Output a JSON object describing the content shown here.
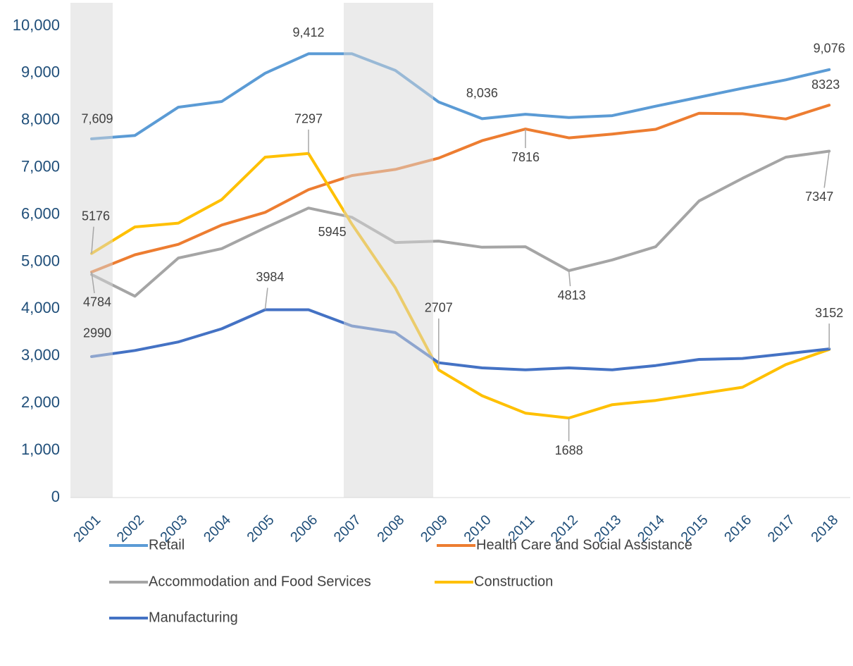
{
  "chart_data": {
    "type": "line",
    "categories": [
      "2001",
      "2002",
      "2003",
      "2004",
      "2005",
      "2006",
      "2007",
      "2008",
      "2009",
      "2010",
      "2011",
      "2012",
      "2013",
      "2014",
      "2015",
      "2016",
      "2017",
      "2018"
    ],
    "ylim": [
      0,
      10000
    ],
    "yticks": [
      0,
      {
        "value": 1000,
        "label": "1,000"
      },
      {
        "value": 2000,
        "label": "2,000"
      },
      {
        "value": 3000,
        "label": "3,000"
      },
      {
        "value": 4000,
        "label": "4,000"
      },
      {
        "value": 5000,
        "label": "5,000"
      },
      {
        "value": 6000,
        "label": "6,000"
      },
      {
        "value": 7000,
        "label": "7,000"
      },
      {
        "value": 8000,
        "label": "8,000"
      },
      {
        "value": 9000,
        "label": "9,000"
      },
      {
        "value": 10000,
        "label": "10,000"
      }
    ],
    "grid": false,
    "series": [
      {
        "name": "Retail",
        "color": "#5b9bd5",
        "values": [
          7609,
          7680,
          8280,
          8400,
          9000,
          9412,
          9412,
          9060,
          8390,
          8036,
          8130,
          8060,
          8100,
          8300,
          8490,
          8680,
          8860,
          9076
        ],
        "value_labels": [
          "7,609",
          null,
          null,
          null,
          null,
          "9,412",
          null,
          null,
          null,
          "8,036",
          null,
          null,
          null,
          null,
          null,
          null,
          null,
          "9,076"
        ]
      },
      {
        "name": "Health Care and Social Assistance",
        "color": "#ed7d31",
        "values": [
          4784,
          5150,
          5370,
          5780,
          6050,
          6530,
          6830,
          6960,
          7200,
          7570,
          7816,
          7630,
          7710,
          7810,
          8150,
          8140,
          8030,
          8323
        ],
        "value_labels": [
          "4784",
          null,
          null,
          null,
          null,
          null,
          null,
          null,
          null,
          null,
          "7816",
          null,
          null,
          null,
          null,
          null,
          null,
          "8323"
        ]
      },
      {
        "name": "Accommodation and Food Services",
        "color": "#a5a5a5",
        "values": [
          4730,
          4270,
          5080,
          5280,
          5720,
          6140,
          5945,
          5410,
          5440,
          5310,
          5320,
          4813,
          5040,
          5320,
          6290,
          6770,
          7220,
          7347
        ],
        "value_labels": [
          null,
          null,
          null,
          null,
          null,
          null,
          "5945",
          null,
          null,
          null,
          null,
          "4813",
          null,
          null,
          null,
          null,
          null,
          "7347"
        ]
      },
      {
        "name": "Construction",
        "color": "#ffc000",
        "values": [
          5176,
          5740,
          5820,
          6320,
          7220,
          7297,
          5800,
          4450,
          2707,
          2160,
          1790,
          1688,
          1970,
          2060,
          2200,
          2340,
          2820,
          3140
        ],
        "value_labels": [
          "5176",
          null,
          null,
          null,
          null,
          "7297",
          null,
          null,
          "2707",
          null,
          null,
          "1688",
          null,
          null,
          null,
          null,
          null,
          null
        ]
      },
      {
        "name": "Manufacturing",
        "color": "#4472c4",
        "values": [
          2990,
          3120,
          3300,
          3580,
          3984,
          3984,
          3640,
          3500,
          2860,
          2750,
          2710,
          2750,
          2710,
          2800,
          2930,
          2950,
          3050,
          3152
        ],
        "value_labels": [
          "2990",
          null,
          null,
          null,
          "3984",
          null,
          null,
          null,
          null,
          null,
          null,
          null,
          null,
          null,
          null,
          null,
          null,
          "3152"
        ]
      }
    ]
  }
}
